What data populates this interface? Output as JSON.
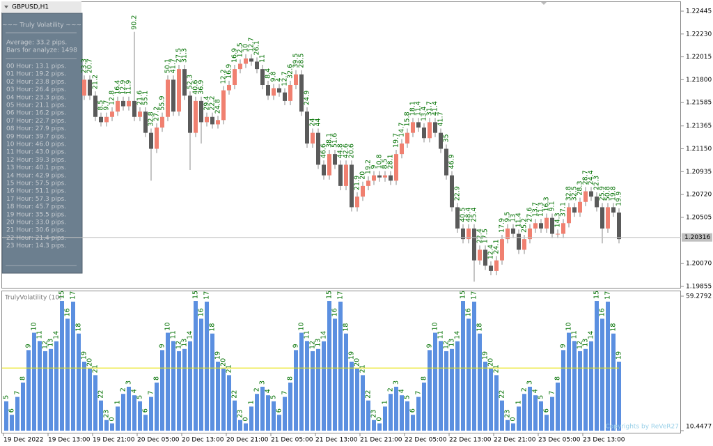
{
  "window": {
    "title": "GBPUSD,H1"
  },
  "panel": {
    "title": "~~~ Truly Volatility ~~~",
    "average": "Average: 33.2 pips.",
    "bars": "Bars for analyze: 1498",
    "rows": [
      "00 Hour: 13.1 pips.",
      "01 Hour: 19.2 pips.",
      "02 Hour: 23.8 pips.",
      "03 Hour: 26.4 pips.",
      "04 Hour: 23.3 pips.",
      "05 Hour: 21.1 pips.",
      "06 Hour: 16.2 pips.",
      "07 Hour: 22.7 pips.",
      "08 Hour: 27.9 pips.",
      "09 Hour: 39.7 pips.",
      "10 Hour: 46.0 pips.",
      "11 Hour: 43.0 pips.",
      "12 Hour: 39.3 pips.",
      "13 Hour: 40.1 pips.",
      "14 Hour: 42.9 pips.",
      "15 Hour: 57.5 pips.",
      "16 Hour: 51.1 pips.",
      "17 Hour: 57.3 pips.",
      "18 Hour: 45.7 pips.",
      "19 Hour: 35.5 pips.",
      "20 Hour: 33.0 pips.",
      "21 Hour: 30.6 pips.",
      "22 Hour: 21.4 pips.",
      "23 Hour: 14.3 pips."
    ]
  },
  "chart_data": [
    {
      "type": "candlestick",
      "ylim": [
        1.19855,
        1.22445
      ],
      "yticks": [
        {
          "value": 1.22445,
          "label": "1.22445"
        },
        {
          "value": 1.2223,
          "label": "1.22230"
        },
        {
          "value": 1.22015,
          "label": "1.22015"
        },
        {
          "value": 1.218,
          "label": "1.21800"
        },
        {
          "value": 1.21585,
          "label": "1.21585"
        },
        {
          "value": 1.21365,
          "label": "1.21365"
        },
        {
          "value": 1.2115,
          "label": "1.21150"
        },
        {
          "value": 1.20935,
          "label": "1.20935"
        },
        {
          "value": 1.2072,
          "label": "1.20720"
        },
        {
          "value": 1.20505,
          "label": "1.20505"
        },
        {
          "value": 1.2007,
          "label": "1.20070"
        },
        {
          "value": 1.19855,
          "label": "1.19855"
        }
      ],
      "current_price": 1.20316,
      "up_color": "#f08070",
      "down_color": "#5a5a5a",
      "label_color": "#007000",
      "open": [
        1.2165,
        1.218,
        1.2165,
        1.2145,
        1.214,
        1.2145,
        1.215,
        1.216,
        1.2155,
        1.216,
        1.2145,
        1.215,
        1.213,
        1.2115,
        1.2135,
        1.2145,
        1.218,
        1.215,
        1.219,
        1.2165,
        1.213,
        1.216,
        1.214,
        1.2145,
        1.2138,
        1.2142,
        1.217,
        1.2175,
        1.219,
        1.2195,
        1.22,
        1.2197,
        1.219,
        1.2175,
        1.2165,
        1.2172,
        1.2168,
        1.216,
        1.2175,
        1.2185,
        1.215,
        1.212,
        1.213,
        1.21,
        1.209,
        1.211,
        1.21,
        1.208,
        1.21,
        1.206,
        1.207,
        1.208,
        1.2085,
        1.209,
        1.2088,
        1.209,
        1.2085,
        1.211,
        1.212,
        1.213,
        1.214,
        1.2135,
        1.2125,
        1.214,
        1.213,
        1.2115,
        1.209,
        1.206,
        1.204,
        1.203,
        1.204,
        1.201,
        1.202,
        1.2005,
        1.2,
        1.201,
        1.203,
        1.204,
        1.2035,
        1.202,
        1.203,
        1.204,
        1.2045,
        1.204,
        1.205,
        1.2035,
        1.2035,
        1.2045,
        1.206,
        1.2055,
        1.2065,
        1.2075,
        1.207,
        1.206,
        1.204,
        1.206,
        1.2055
      ],
      "close": [
        1.218,
        1.2165,
        1.2145,
        1.214,
        1.2145,
        1.215,
        1.216,
        1.2155,
        1.216,
        1.2145,
        1.215,
        1.213,
        1.2115,
        1.2135,
        1.2145,
        1.218,
        1.215,
        1.219,
        1.2165,
        1.213,
        1.216,
        1.214,
        1.2145,
        1.2138,
        1.2142,
        1.217,
        1.2175,
        1.219,
        1.2195,
        1.22,
        1.2197,
        1.219,
        1.2175,
        1.2165,
        1.2172,
        1.2168,
        1.216,
        1.2175,
        1.2185,
        1.215,
        1.212,
        1.213,
        1.21,
        1.209,
        1.211,
        1.21,
        1.208,
        1.21,
        1.206,
        1.207,
        1.208,
        1.2085,
        1.209,
        1.2088,
        1.209,
        1.2085,
        1.211,
        1.212,
        1.213,
        1.214,
        1.2135,
        1.2125,
        1.214,
        1.213,
        1.2115,
        1.209,
        1.206,
        1.204,
        1.203,
        1.204,
        1.201,
        1.202,
        1.2005,
        1.2,
        1.201,
        1.203,
        1.204,
        1.2035,
        1.202,
        1.203,
        1.204,
        1.2045,
        1.204,
        1.205,
        1.2035,
        1.2035,
        1.2045,
        1.206,
        1.2055,
        1.2065,
        1.2075,
        1.207,
        1.206,
        1.204,
        1.206,
        1.2055,
        1.203
      ],
      "high": [
        1.2184,
        1.2184,
        1.2169,
        1.2149,
        1.2149,
        1.2154,
        1.2164,
        1.2164,
        1.2164,
        1.2225,
        1.2154,
        1.2154,
        1.2134,
        1.2139,
        1.2149,
        1.2184,
        1.2184,
        1.2194,
        1.2194,
        1.2169,
        1.2164,
        1.2164,
        1.2149,
        1.2149,
        1.2146,
        1.2174,
        1.2179,
        1.2194,
        1.2199,
        1.2204,
        1.2204,
        1.2201,
        1.2194,
        1.2179,
        1.2176,
        1.2176,
        1.2172,
        1.2179,
        1.2189,
        1.2189,
        1.2154,
        1.2134,
        1.2134,
        1.2104,
        1.2114,
        1.2114,
        1.2104,
        1.2104,
        1.2104,
        1.2074,
        1.2084,
        1.2089,
        1.2094,
        1.2094,
        1.2094,
        1.2094,
        1.2114,
        1.2124,
        1.2134,
        1.2144,
        1.2144,
        1.2139,
        1.2144,
        1.2144,
        1.2134,
        1.2119,
        1.2094,
        1.2064,
        1.2044,
        1.2044,
        1.2044,
        1.2024,
        1.2024,
        1.2009,
        1.2014,
        1.2034,
        1.2044,
        1.2044,
        1.2039,
        1.2034,
        1.2044,
        1.2049,
        1.2049,
        1.2054,
        1.2054,
        1.2039,
        1.2049,
        1.2064,
        1.2064,
        1.2069,
        1.2079,
        1.2079,
        1.2074,
        1.2064,
        1.2064,
        1.2064,
        1.2059
      ],
      "low": [
        1.2161,
        1.2161,
        1.2141,
        1.2136,
        1.2136,
        1.2141,
        1.2146,
        1.2151,
        1.2151,
        1.2141,
        1.2141,
        1.2126,
        1.2085,
        1.2111,
        1.2131,
        1.2141,
        1.2146,
        1.2146,
        1.2161,
        1.2095,
        1.2126,
        1.212,
        1.2136,
        1.2134,
        1.2134,
        1.2138,
        1.2166,
        1.2171,
        1.2186,
        1.2191,
        1.2193,
        1.2186,
        1.2171,
        1.2161,
        1.2161,
        1.2164,
        1.2156,
        1.2156,
        1.2171,
        1.2146,
        1.2116,
        1.2116,
        1.2096,
        1.2086,
        1.2086,
        1.2096,
        1.2076,
        1.2076,
        1.2056,
        1.2056,
        1.2066,
        1.2076,
        1.2081,
        1.2084,
        1.2084,
        1.2081,
        1.2081,
        1.2106,
        1.2116,
        1.2126,
        1.2131,
        1.2121,
        1.2121,
        1.2126,
        1.2111,
        1.2086,
        1.2056,
        1.2036,
        1.2026,
        1.2026,
        1.199,
        1.2006,
        1.2001,
        1.1996,
        1.1996,
        1.2006,
        1.2026,
        1.2031,
        1.2016,
        1.2016,
        1.2026,
        1.2036,
        1.2036,
        1.2036,
        1.2031,
        1.2031,
        1.2031,
        1.2041,
        1.2051,
        1.2051,
        1.2061,
        1.2066,
        1.2056,
        1.2026,
        1.2036,
        1.2051,
        1.2026
      ],
      "labels": [
        23.3,
        20.7,
        21.2,
        8.5,
        9.7,
        12.8,
        16.4,
        12.9,
        11.9,
        90.2,
        21.6,
        55.1,
        32.8,
        27.2,
        55.9,
        50.1,
        41.7,
        27.5,
        31.3,
        52.3,
        40.6,
        36.9,
        29.4,
        22.2,
        24.8,
        12.2,
        16.9,
        16.9,
        12.5,
        10.0,
        12.7,
        26.1,
        11.0,
        8.4,
        9.8,
        4.0,
        12.7,
        32.6,
        39.5,
        28.5,
        24.9,
        24.0,
        44.0,
        46.6,
        38.1,
        51.6,
        44.8,
        42.6,
        20.6,
        21.9,
        20.0,
        19.2,
        9.0,
        10.8,
        8.5,
        28.1,
        19.7,
        14.7,
        15.8,
        18.1,
        11.4,
        13.4,
        31.7,
        41.4,
        41.7,
        35.0,
        46.9,
        22.9,
        40.5,
        48.4,
        25.4,
        22.4,
        17.5,
        12.4,
        24.1,
        17.9,
        9.5,
        13.0,
        11.4,
        25.2,
        27.6,
        13.7,
        11.3,
        16.3,
        9.1,
        14.3,
        37.1,
        32.8,
        32.5,
        28.3,
        28.7,
        24.4,
        22.3,
        25.9,
        50.8,
        19.8,
        19.9
      ]
    },
    {
      "type": "bar",
      "title": "TrulyVolatility (10)",
      "color": "#5b8fe0",
      "line_color": "#e8e000",
      "line_value": 33.2,
      "label_color": "#007000",
      "ylim": [
        10.4477,
        59.2792
      ],
      "yticks": [
        59.2792,
        10.4477
      ],
      "categories": [
        5,
        6,
        7,
        8,
        9,
        10,
        11,
        12,
        13,
        14,
        15,
        16,
        17,
        18,
        19,
        20,
        21,
        22,
        23,
        0,
        1,
        2,
        3,
        4,
        5,
        6,
        7,
        8,
        9,
        10,
        11,
        12,
        13,
        14,
        15,
        16,
        17,
        18,
        19,
        20,
        21,
        22,
        23,
        0,
        1,
        2,
        3,
        4,
        5,
        6,
        7,
        8,
        9,
        10,
        11,
        12,
        13,
        14,
        15,
        16,
        17,
        18,
        19,
        20,
        21,
        22,
        23,
        0,
        1,
        2,
        3,
        4,
        5,
        6,
        7,
        8,
        9,
        10,
        11,
        12,
        13,
        14,
        15,
        16,
        17,
        18,
        19,
        20,
        21,
        22,
        23,
        0,
        1,
        2,
        3,
        4,
        5,
        6,
        7,
        8,
        9,
        10,
        11,
        12,
        13,
        14,
        15,
        16,
        17,
        18,
        19
      ],
      "values": [
        21.1,
        16.2,
        22.7,
        27.9,
        39.7,
        46.0,
        43.0,
        39.3,
        40.1,
        42.9,
        57.5,
        51.1,
        57.3,
        45.7,
        35.5,
        33.0,
        30.6,
        21.4,
        14.3,
        13.1,
        19.2,
        23.8,
        26.4,
        23.3,
        21.1,
        16.2,
        22.7,
        27.9,
        39.7,
        46.0,
        43.0,
        39.3,
        40.1,
        42.9,
        57.5,
        51.1,
        57.3,
        45.7,
        35.5,
        33.0,
        30.6,
        21.4,
        14.3,
        13.1,
        19.2,
        23.8,
        26.4,
        23.3,
        21.1,
        16.2,
        22.7,
        27.9,
        39.7,
        46.0,
        43.0,
        39.3,
        40.1,
        42.9,
        57.5,
        51.1,
        57.3,
        45.7,
        35.5,
        33.0,
        30.6,
        21.4,
        14.3,
        13.1,
        19.2,
        23.8,
        26.4,
        23.3,
        21.1,
        16.2,
        22.7,
        27.9,
        39.7,
        46.0,
        43.0,
        39.3,
        40.1,
        42.9,
        57.5,
        51.1,
        57.3,
        45.7,
        35.5,
        33.0,
        30.6,
        21.4,
        14.3,
        13.1,
        19.2,
        23.8,
        26.4,
        23.3,
        21.1,
        16.2,
        22.7,
        27.9,
        39.7,
        46.0,
        43.0,
        39.3,
        40.1,
        42.9,
        57.5,
        51.1,
        57.3,
        45.7,
        35.5
      ],
      "copyright": "Copyrights by ReVeR27"
    }
  ],
  "time_axis": [
    "19 Dec 2022",
    "19 Dec 13:00",
    "19 Dec 21:00",
    "20 Dec 05:00",
    "20 Dec 13:00",
    "20 Dec 21:00",
    "21 Dec 05:00",
    "21 Dec 13:00",
    "21 Dec 21:00",
    "22 Dec 05:00",
    "22 Dec 13:00",
    "22 Dec 21:00",
    "23 Dec 05:00",
    "23 Dec 13:00"
  ]
}
